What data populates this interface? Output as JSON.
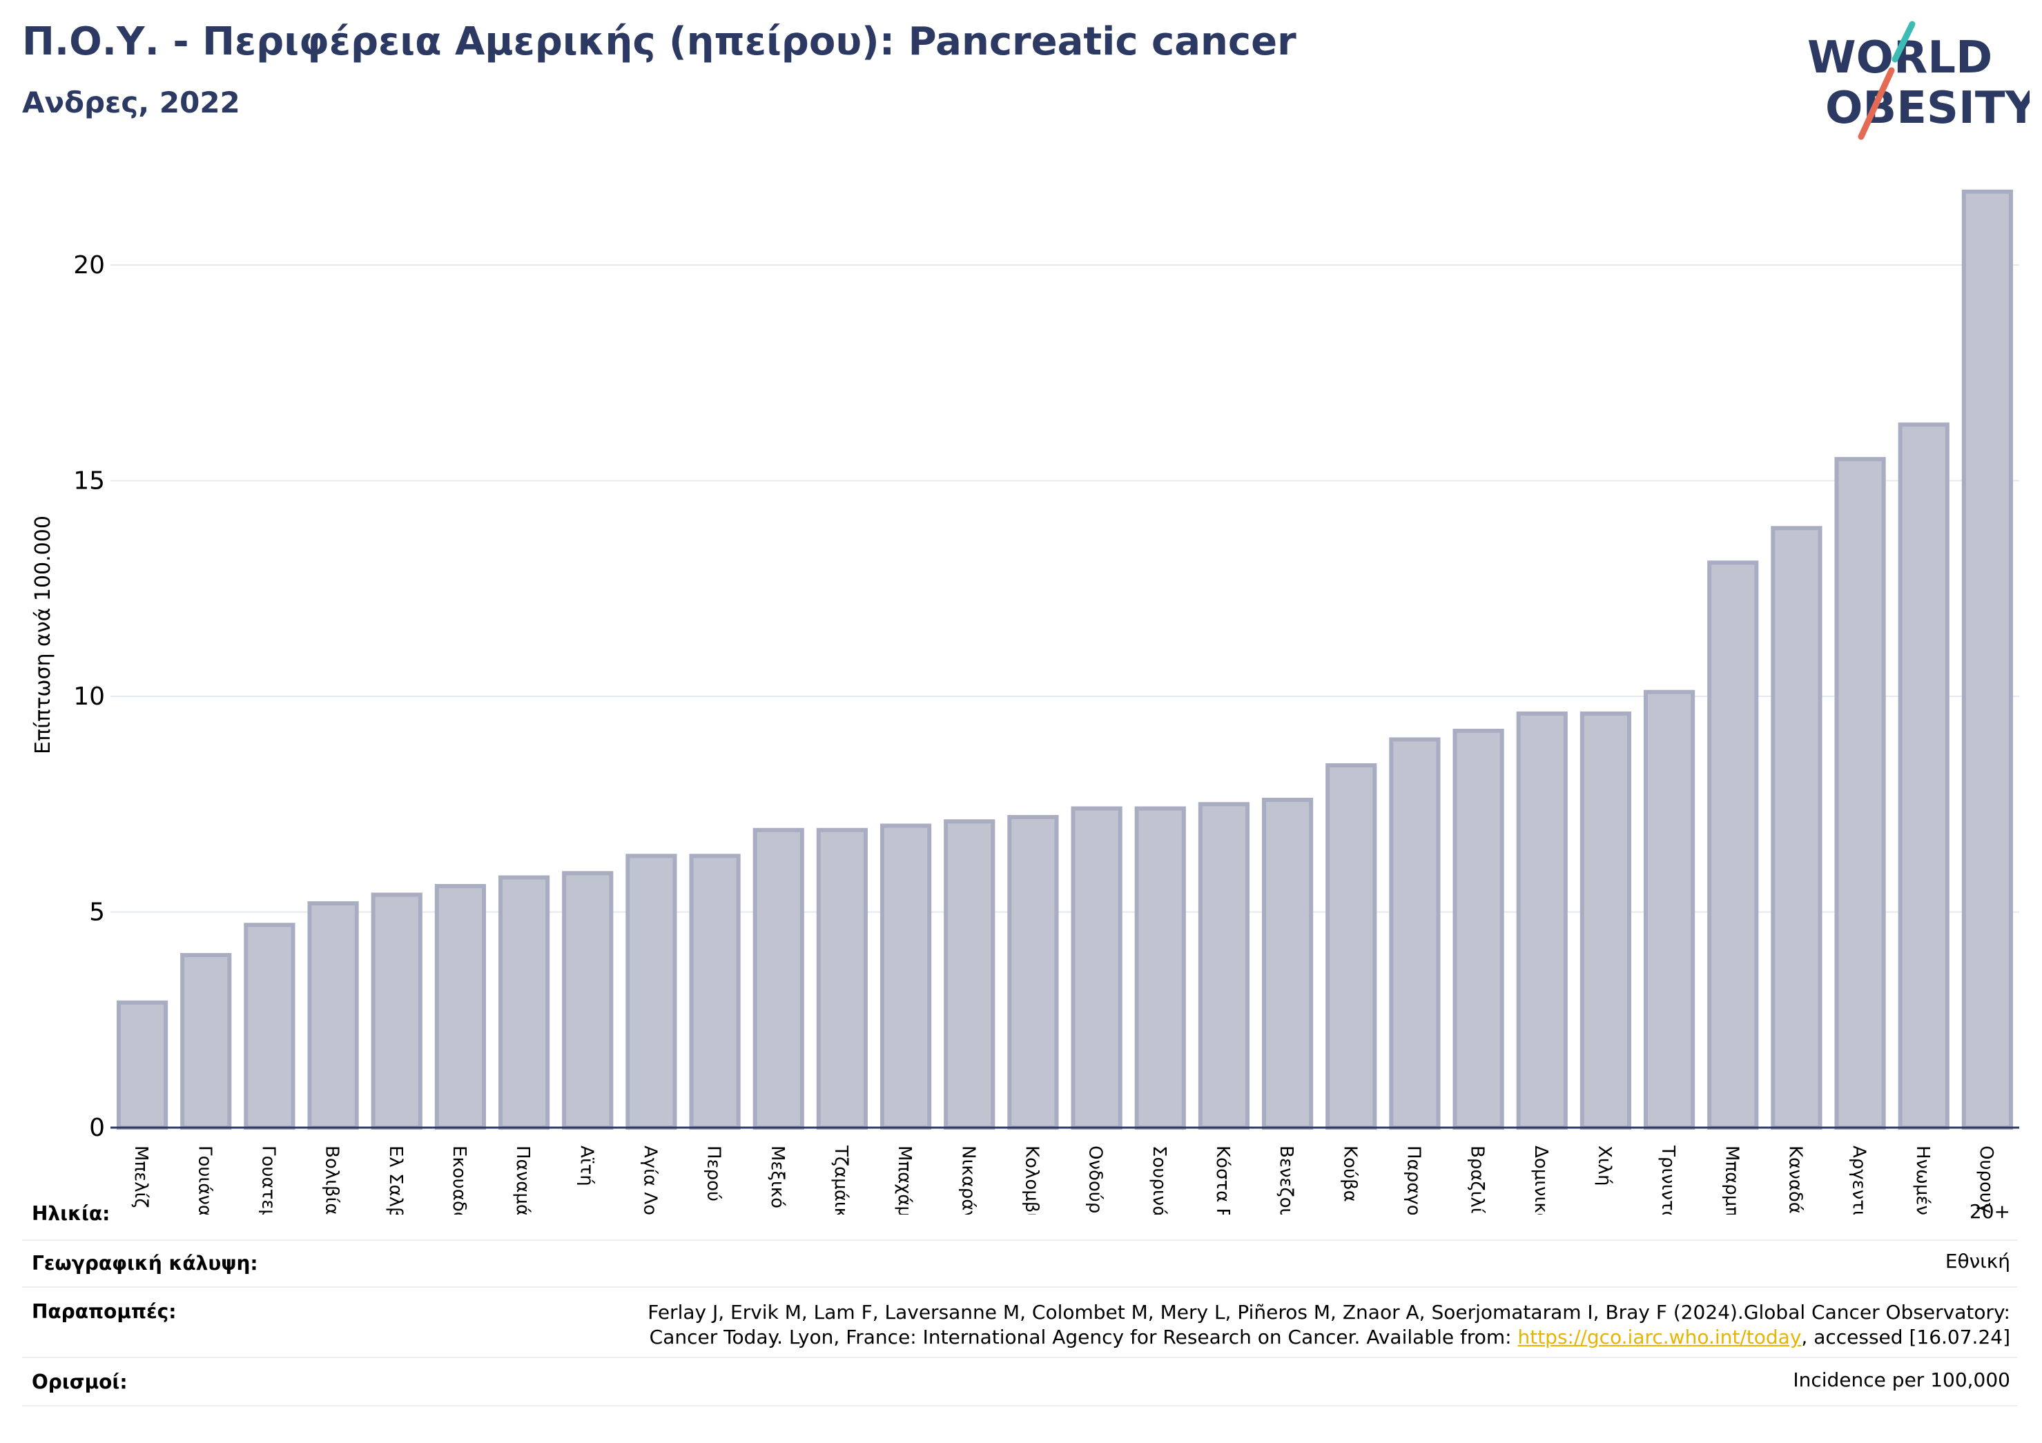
{
  "header": {
    "title": "Π.Ο.Υ. - Περιφέρεια Αμερικής (ηπείρου): Pancreatic cancer",
    "subtitle": "Ανδρες, 2022"
  },
  "logo": {
    "line1": "WORLD",
    "line2": "OBESITY",
    "icon": "slash-logo-icon"
  },
  "colors": {
    "title": "#2c3a63",
    "bar_fill": "#c0c3d0",
    "bar_stroke": "#a8adc2",
    "link": "#e8b400"
  },
  "chart_data": {
    "type": "bar",
    "ylabel": "Επίπτωση ανά 100.000",
    "ylim": [
      0,
      22
    ],
    "yticks": [
      0,
      5,
      10,
      15,
      20
    ],
    "grid": true,
    "categories": [
      "Μπελίζ",
      "Γουιάνα",
      "Γουατεμάλα",
      "Βολιβία",
      "Ελ Σαλβαδόρ",
      "Εκουαδόρ",
      "Παναμάς",
      "Αϊτή",
      "Αγία Λουκία",
      "Περού",
      "Μεξικό",
      "Τζαμάικα",
      "Μπαχάμες",
      "Νικαράγουα",
      "Κολομβία",
      "Ονδούρα",
      "Σουρινάμ",
      "Κόστα Ρίκα",
      "Βενεζουέλα",
      "Κούβα",
      "Παραγουάη",
      "Βραζιλία",
      "Δομινικανή Δημοκρατία",
      "Χιλή",
      "Τρινιντάντ και Τομπάγκο",
      "Μπαρμπάντος",
      "Καναδάς",
      "Αργεντινή",
      "Ηνωμένες Πολιτείες",
      "Ουρουγουάη"
    ],
    "values": [
      2.9,
      4.0,
      4.7,
      5.2,
      5.4,
      5.6,
      5.8,
      5.9,
      6.3,
      6.3,
      6.9,
      6.9,
      7.0,
      7.1,
      7.2,
      7.4,
      7.4,
      7.5,
      7.6,
      8.4,
      9.0,
      9.2,
      9.6,
      9.6,
      10.1,
      13.1,
      13.9,
      15.5,
      16.3,
      21.7
    ]
  },
  "info": {
    "age_label": "Ηλικία:",
    "age_value": "20+",
    "coverage_label": "Γεωγραφική κάλυψη:",
    "coverage_value": "Εθνική",
    "refs_label": "Παραπομπές:",
    "refs_line1": "Ferlay J, Ervik M, Lam F, Laversanne M, Colombet M, Mery L, Piñeros M, Znaor A, Soerjomataram I, Bray F (2024).Global Cancer Observatory:",
    "refs_line2_pre": "Cancer Today. Lyon, France: International Agency for Research on Cancer. Available from: ",
    "refs_link": "https://gco.iarc.who.int/today",
    "refs_line2_post": ", accessed [16.07.24]",
    "defs_label": "Ορισμοί:",
    "defs_value": "Incidence per 100,000"
  }
}
